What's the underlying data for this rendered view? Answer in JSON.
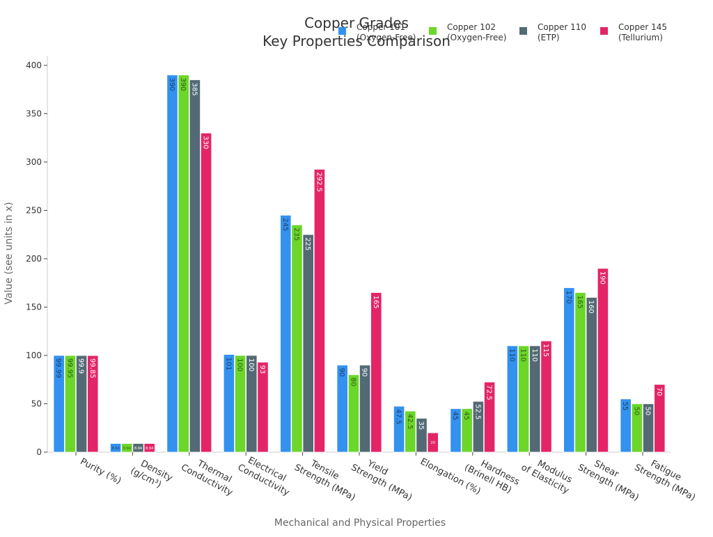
{
  "chart_data": {
    "type": "bar",
    "title": "Copper Grades",
    "subtitle": "Key Properties Comparison",
    "xlabel": "Mechanical and Physical Properties",
    "ylabel": "Value (see units in x)",
    "ylim": [
      0,
      410
    ],
    "yticks": [
      0,
      50,
      100,
      150,
      200,
      250,
      300,
      350,
      400
    ],
    "grid": false,
    "legend_position": "top-right",
    "categories": [
      [
        "Purity (%)"
      ],
      [
        "Density",
        "(g/cm³)"
      ],
      [
        "Thermal",
        "Conductivity"
      ],
      [
        "Electrical",
        "Conductivity"
      ],
      [
        "Tensile",
        "Strength (MPa)"
      ],
      [
        "Yield",
        "Strength (MPa)"
      ],
      [
        "Elongation (%)"
      ],
      [
        "Hardness",
        "(Brinell HB)"
      ],
      [
        "Modulus",
        "of Elasticity"
      ],
      [
        "Shear",
        "Strength (MPa)"
      ],
      [
        "Fatigue",
        "Strength (MPa)"
      ]
    ],
    "series": [
      {
        "name": [
          "Copper 101",
          "(Oxygen-Free)"
        ],
        "color": "#3391f0",
        "label_color": "#1c3d66",
        "values": [
          99.99,
          8.94,
          390,
          101,
          245,
          90,
          47.5,
          45,
          110,
          170,
          55
        ],
        "labels": [
          "99.99",
          "8.94",
          "390",
          "101",
          "245",
          "90",
          "47.5",
          "45",
          "110",
          "170",
          "55"
        ]
      },
      {
        "name": [
          "Copper 102",
          "(Oxygen-Free)"
        ],
        "color": "#6cd62b",
        "label_color": "#2c5a10",
        "values": [
          99.95,
          8.94,
          390,
          100,
          235,
          80,
          42.5,
          45,
          110,
          165,
          50
        ],
        "labels": [
          "99.95",
          "8.94",
          "390",
          "100",
          "235",
          "80",
          "42.5",
          "45",
          "110",
          "165",
          "50"
        ]
      },
      {
        "name": [
          "Copper 110",
          "(ETP)"
        ],
        "color": "#536a75",
        "label_color": "#ffffff",
        "values": [
          99.9,
          8.94,
          385,
          100,
          225,
          90,
          35,
          52.5,
          110,
          160,
          50
        ],
        "labels": [
          "99.9",
          "8.94",
          "385",
          "100",
          "225",
          "90",
          "35",
          "52.5",
          "110",
          "160",
          "50"
        ]
      },
      {
        "name": [
          "Copper 145",
          "(Tellurium)"
        ],
        "color": "#e32567",
        "label_color": "#ffffff",
        "values": [
          99.85,
          8.94,
          330,
          93,
          292.5,
          165,
          20,
          72.5,
          115,
          190,
          70
        ],
        "labels": [
          "99.85",
          "8.94",
          "330",
          "93",
          "292.5",
          "165",
          "20",
          "72.5",
          "115",
          "190",
          "70"
        ]
      }
    ]
  }
}
